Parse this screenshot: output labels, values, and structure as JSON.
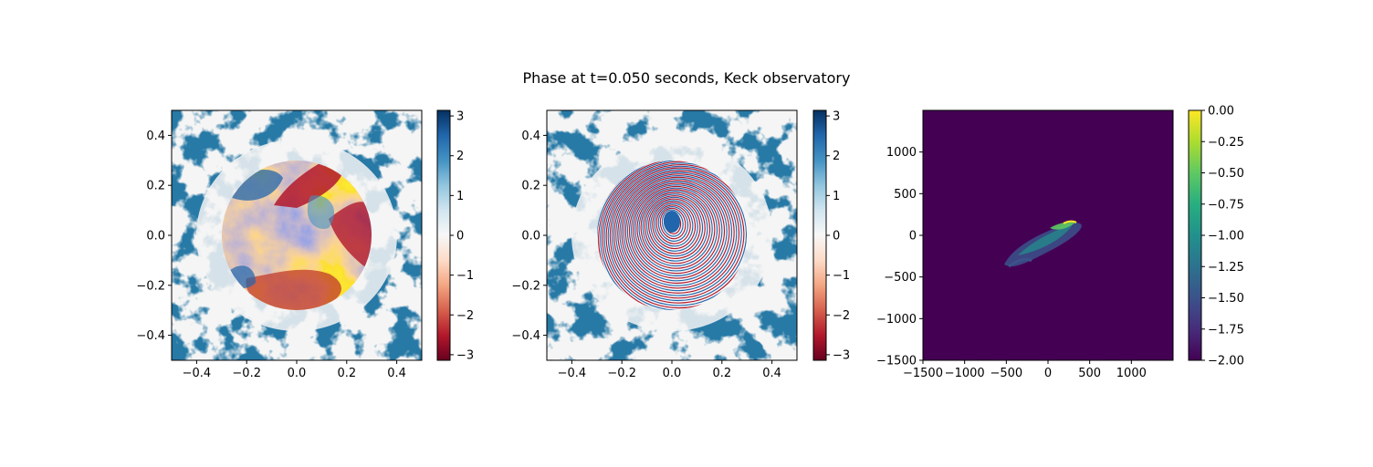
{
  "figure": {
    "title": "Phase at t=0.050 seconds, Keck observatory"
  },
  "chart_data": [
    {
      "type": "heatmap",
      "description": "phase screen",
      "xlim": [
        -0.5,
        0.5
      ],
      "ylim": [
        -0.5,
        0.5
      ],
      "xticks": [
        -0.4,
        -0.2,
        0.0,
        0.2,
        0.4
      ],
      "yticks": [
        -0.4,
        -0.2,
        0.0,
        0.2,
        0.4
      ],
      "xtick_labels": [
        "−0.4",
        "−0.2",
        "0.0",
        "0.2",
        "0.4"
      ],
      "ytick_labels": [
        "−0.4",
        "−0.2",
        "0.0",
        "0.2",
        "0.4"
      ],
      "colormap": "RdBu",
      "aperture_radius": 0.3,
      "colorbar": {
        "range": [
          -3.14,
          3.14
        ],
        "ticks": [
          -3,
          -2,
          -1,
          0,
          1,
          2,
          3
        ],
        "tick_labels": [
          "−3",
          "−2",
          "−1",
          "0",
          "1",
          "2",
          "3"
        ]
      }
    },
    {
      "type": "heatmap",
      "description": "phase screen with defocus fringes",
      "xlim": [
        -0.5,
        0.5
      ],
      "ylim": [
        -0.5,
        0.5
      ],
      "xticks": [
        -0.4,
        -0.2,
        0.0,
        0.2,
        0.4
      ],
      "yticks": [
        -0.4,
        -0.2,
        0.0,
        0.2,
        0.4
      ],
      "xtick_labels": [
        "−0.4",
        "−0.2",
        "0.0",
        "0.2",
        "0.4"
      ],
      "ytick_labels": [
        "−0.4",
        "−0.2",
        "0.0",
        "0.2",
        "0.4"
      ],
      "colormap": "RdBu",
      "aperture_radius": 0.3,
      "colorbar": {
        "range": [
          -3.14,
          3.14
        ],
        "ticks": [
          -3,
          -2,
          -1,
          0,
          1,
          2,
          3
        ],
        "tick_labels": [
          "−3",
          "−2",
          "−1",
          "0",
          "1",
          "2",
          "3"
        ]
      }
    },
    {
      "type": "heatmap",
      "description": "log intensity",
      "xlim": [
        -1500,
        1500
      ],
      "ylim": [
        -1500,
        1500
      ],
      "xticks": [
        -1500,
        -1000,
        -500,
        0,
        500,
        1000
      ],
      "yticks": [
        -1500,
        -1000,
        -500,
        0,
        500,
        1000
      ],
      "xtick_labels": [
        "−1500",
        "−1000",
        "−500",
        "0",
        "500",
        "1000"
      ],
      "ytick_labels": [
        "−1500",
        "−1000",
        "−500",
        "0",
        "500",
        "1000"
      ],
      "colormap": "viridis",
      "background_value": -2.0,
      "colorbar": {
        "range": [
          -2.0,
          0.0
        ],
        "ticks": [
          0.0,
          -0.25,
          -0.5,
          -0.75,
          -1.0,
          -1.25,
          -1.5,
          -1.75,
          -2.0
        ],
        "tick_labels": [
          "0.00",
          "−0.25",
          "−0.50",
          "−0.75",
          "−1.00",
          "−1.25",
          "−1.50",
          "−1.75",
          "−2.00"
        ]
      }
    }
  ],
  "colors": {
    "rdbu_dark_blue": "#053061",
    "rdbu_dark_red": "#67001f",
    "rdbu_mid": "#f7f7f7",
    "viridis_low": "#440154",
    "viridis_high": "#fde725"
  }
}
